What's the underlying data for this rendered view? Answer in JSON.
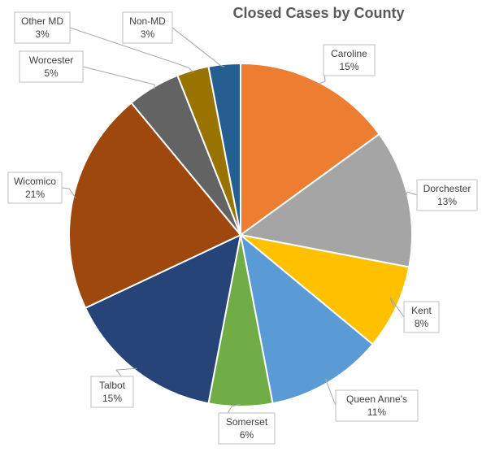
{
  "chart_data": {
    "type": "pie",
    "title": "Closed Cases by County",
    "slices": [
      {
        "name": "Caroline",
        "value": 15,
        "label": "15%",
        "color": "#ED7D31"
      },
      {
        "name": "Dorchester",
        "value": 13,
        "label": "13%",
        "color": "#A5A5A5"
      },
      {
        "name": "Kent",
        "value": 8,
        "label": "8%",
        "color": "#FFC000"
      },
      {
        "name": "Queen Anne's",
        "value": 11,
        "label": "11%",
        "color": "#5B9BD5"
      },
      {
        "name": "Somerset",
        "value": 6,
        "label": "6%",
        "color": "#70AD47"
      },
      {
        "name": "Talbot",
        "value": 15,
        "label": "15%",
        "color": "#264478"
      },
      {
        "name": "Wicomico",
        "value": 21,
        "label": "21%",
        "color": "#9E480E"
      },
      {
        "name": "Worcester",
        "value": 5,
        "label": "5%",
        "color": "#636363"
      },
      {
        "name": "Other MD",
        "value": 3,
        "label": "3%",
        "color": "#997300"
      },
      {
        "name": "Non-MD",
        "value": 3,
        "label": "3%",
        "color": "#255E91"
      }
    ],
    "start_angle_deg": 0,
    "direction": "clockwise",
    "legend": "none",
    "data_labels": "callouts"
  }
}
